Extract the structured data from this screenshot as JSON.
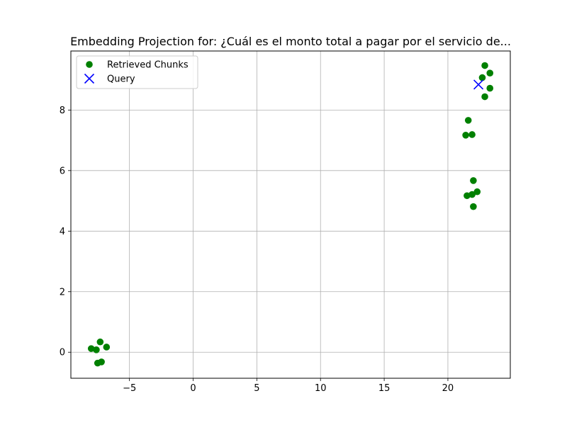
{
  "chart_data": {
    "type": "scatter",
    "title": "Embedding Projection for: ¿Cuál es el monto total a pagar por el servicio de...",
    "xlabel": "",
    "ylabel": "",
    "xlim": [
      -9.6,
      24.9
    ],
    "ylim": [
      -0.86,
      9.95
    ],
    "xticks": [
      -5,
      0,
      5,
      10,
      15,
      20
    ],
    "xtick_labels": [
      "−5",
      "0",
      "5",
      "10",
      "15",
      "20"
    ],
    "yticks": [
      0,
      2,
      4,
      6,
      8
    ],
    "ytick_labels": [
      "0",
      "2",
      "4",
      "6",
      "8"
    ],
    "grid": true,
    "legend_position": "upper-left",
    "series": [
      {
        "name": "Retrieved Chunks",
        "marker": "circle",
        "color": "#008000",
        "points": [
          [
            -8.0,
            0.12
          ],
          [
            -7.6,
            0.08
          ],
          [
            -7.3,
            0.34
          ],
          [
            -6.8,
            0.17
          ],
          [
            -7.5,
            -0.36
          ],
          [
            -7.2,
            -0.32
          ],
          [
            21.6,
            7.66
          ],
          [
            21.4,
            7.17
          ],
          [
            21.9,
            7.19
          ],
          [
            22.0,
            5.67
          ],
          [
            21.5,
            5.17
          ],
          [
            21.9,
            5.21
          ],
          [
            22.3,
            5.3
          ],
          [
            22.0,
            4.81
          ],
          [
            22.9,
            9.47
          ],
          [
            23.3,
            9.22
          ],
          [
            22.7,
            9.07
          ],
          [
            23.3,
            8.72
          ],
          [
            22.9,
            8.44
          ]
        ]
      },
      {
        "name": "Query",
        "marker": "x",
        "color": "#0000ff",
        "points": [
          [
            22.4,
            8.84
          ]
        ]
      }
    ]
  }
}
